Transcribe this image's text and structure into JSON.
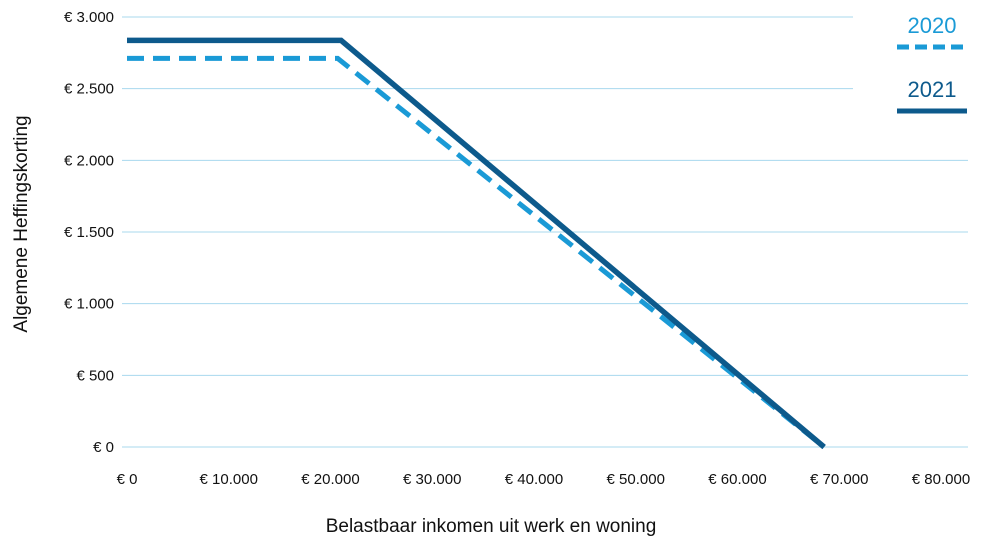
{
  "chart_data": {
    "type": "line",
    "title": "",
    "xlabel": "Belastbaar inkomen uit werk en woning",
    "ylabel": "Algemene Heffingskorting",
    "xlim": [
      0,
      80000
    ],
    "ylim": [
      0,
      3000
    ],
    "x_ticks": [
      0,
      10000,
      20000,
      30000,
      40000,
      50000,
      60000,
      70000,
      80000
    ],
    "x_tick_labels": [
      "€ 0",
      "€ 10.000",
      "€ 20.000",
      "€ 30.000",
      "€ 40.000",
      "€ 50.000",
      "€ 60.000",
      "€ 70.000",
      "€ 80.000"
    ],
    "y_ticks": [
      0,
      500,
      1000,
      1500,
      2000,
      2500,
      3000
    ],
    "y_tick_labels": [
      "€ 0",
      "€ 500",
      "€ 1.000",
      "€ 1.500",
      "€ 2.000",
      "€ 2.500",
      "€ 3.000"
    ],
    "grid": "horizontal",
    "legend_position": "top-right",
    "series": [
      {
        "name": "2020",
        "style": "dashed",
        "color": "#1a9ad6",
        "x": [
          0,
          20711,
          68507
        ],
        "y": [
          2711,
          2711,
          0
        ]
      },
      {
        "name": "2021",
        "style": "solid",
        "color": "#0d5a8c",
        "x": [
          0,
          21043,
          68507
        ],
        "y": [
          2837,
          2837,
          0
        ]
      }
    ]
  }
}
